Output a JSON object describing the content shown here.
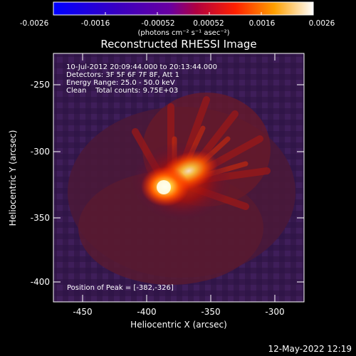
{
  "colorbar": {
    "ticks": [
      "-0.0026",
      "-0.0016",
      "-0.00052",
      "0.00052",
      "0.0016",
      "0.0026"
    ],
    "unit_label": "(photons cm⁻² s⁻¹ asec⁻²)"
  },
  "title": "Reconstructed RHESSI Image",
  "info": {
    "line1": "10-Jul-2012 20:09:44.000 to 20:13:44.000",
    "line2": "Detectors: 3F 5F 6F 7F 8F, Att 1",
    "line3": "Energy Range: 25.0 - 50.0 keV",
    "line4": "Clean    Total counts: 9.75E+03"
  },
  "peak_label": "Position of Peak = [-382,-326]",
  "x_axis": {
    "label": "Heliocentric X (arcsec)",
    "ticks": [
      "-450",
      "-400",
      "-350",
      "-300"
    ]
  },
  "y_axis": {
    "label": "Heliocentric Y (arcsec)",
    "ticks": [
      "-250",
      "-300",
      "-350",
      "-400"
    ]
  },
  "timestamp": "12-May-2022 12:19"
}
